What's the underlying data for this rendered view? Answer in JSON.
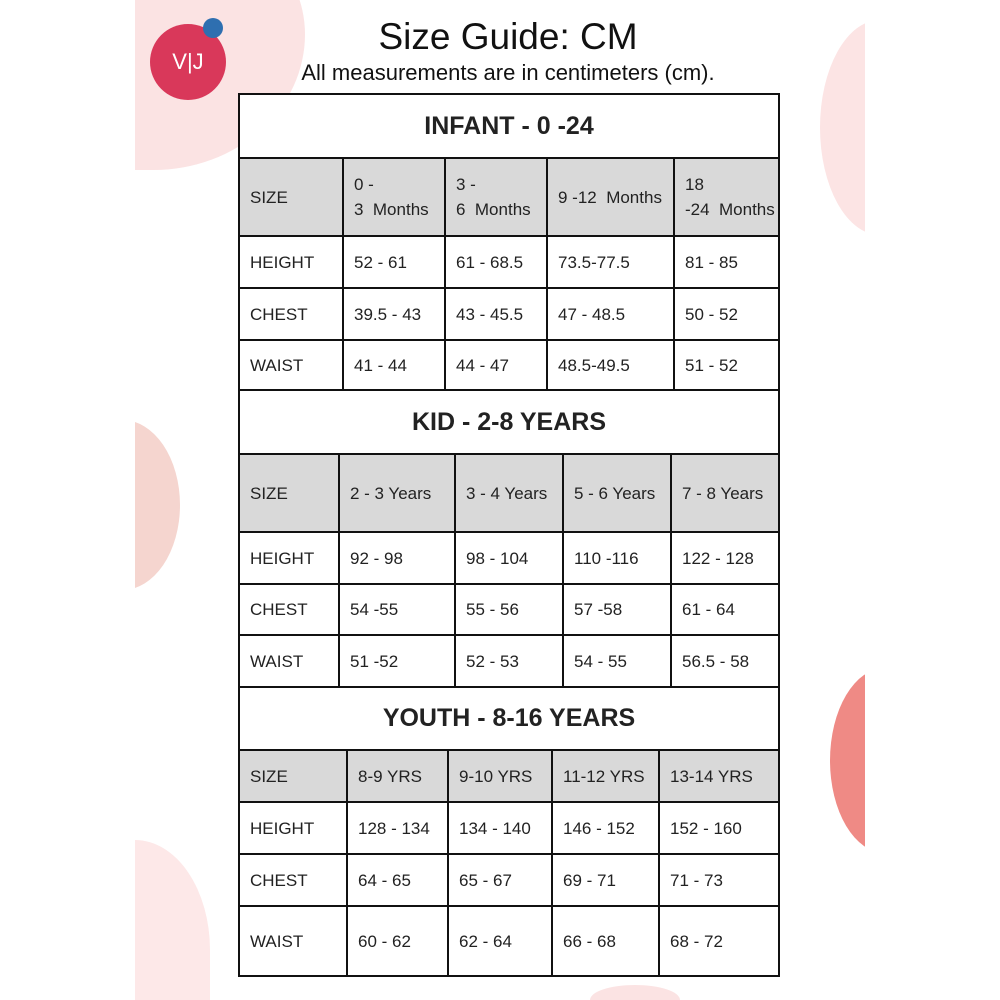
{
  "logo": {
    "text": "V|J",
    "color": "#d9385a",
    "dot_color": "#2e6fb0"
  },
  "header": {
    "title": "Size Guide: CM",
    "subtitle": "All measurements are in centimeters (cm)."
  },
  "colors": {
    "header_row": "#d9d9d9",
    "border": "#111111",
    "blob_pink": "#fbe3e3",
    "blob_salmon": "#ef8a85"
  },
  "sections": [
    {
      "title": "INFANT - 0 -24",
      "columns": [
        "SIZE",
        "0 - 3  Months",
        "3 - 6  Months",
        "9 -12  Months",
        "18 -24  Months"
      ],
      "rows": [
        [
          "HEIGHT",
          "52 - 61",
          "61 - 68.5",
          "73.5-77.5",
          "81 - 85"
        ],
        [
          "CHEST",
          "39.5 - 43",
          "43 - 45.5",
          "47 - 48.5",
          "50 - 52"
        ],
        [
          "WAIST",
          "41 - 44",
          "44 - 47",
          "48.5-49.5",
          "51 - 52"
        ]
      ]
    },
    {
      "title": "KID - 2-8 YEARS",
      "columns": [
        "SIZE",
        "2 - 3 Years",
        "3 - 4 Years",
        "5 - 6 Years",
        "7 - 8 Years"
      ],
      "rows": [
        [
          "HEIGHT",
          "92 - 98",
          "98 - 104",
          "110 -116",
          "122 - 128"
        ],
        [
          "CHEST",
          "54 -55",
          "55 - 56",
          "57 -58",
          "61 - 64"
        ],
        [
          "WAIST",
          "51 -52",
          "52 - 53",
          "54 - 55",
          "56.5 - 58"
        ]
      ]
    },
    {
      "title": "YOUTH - 8-16 YEARS",
      "columns": [
        "SIZE",
        "8-9 YRS",
        "9-10 YRS",
        "11-12 YRS",
        "13-14 YRS"
      ],
      "rows": [
        [
          "HEIGHT",
          "128 - 134",
          "134 - 140",
          "146 - 152",
          "152 - 160"
        ],
        [
          "CHEST",
          "64 - 65",
          "65 - 67",
          "69 - 71",
          "71 - 73"
        ],
        [
          "WAIST",
          "60 - 62",
          "62 - 64",
          "66 - 68",
          "68 - 72"
        ]
      ]
    }
  ]
}
